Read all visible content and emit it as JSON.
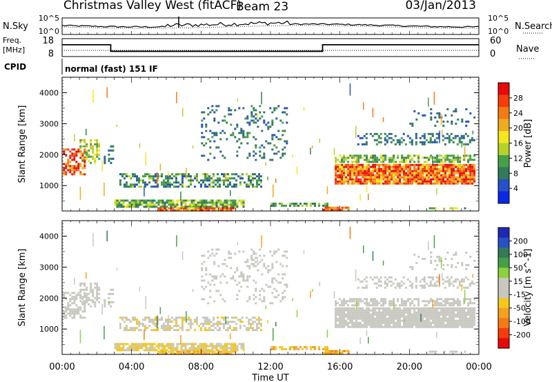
{
  "header": {
    "title": "Christmas Valley West (fitACF)",
    "beam": "Beam 23",
    "date": "03/Jan/2013",
    "nsky_label": "N.Sky",
    "nsearch_label": "N.Search",
    "freq_label_line1": "Freq.",
    "freq_label_line2": "[MHz]",
    "nave_label": "Nave",
    "cpid_label": "CPID",
    "cpid_value": "normal (fast) 151 IF"
  },
  "noise_panel": {
    "left_ticks": [
      "10^5",
      "10^0"
    ],
    "right_ticks": [
      "10^5",
      "10^0"
    ]
  },
  "freq_panel": {
    "left_ticks": [
      "18",
      "8"
    ],
    "right_ticks": [
      "60",
      "0"
    ],
    "freq_segments": [
      {
        "start": 0.0,
        "end": 2.8,
        "mhz": 14.6
      },
      {
        "start": 2.8,
        "end": 15.0,
        "mhz": 10.9
      },
      {
        "start": 15.0,
        "end": 24.0,
        "mhz": 14.6
      }
    ]
  },
  "chart_data": [
    {
      "type": "heatmap",
      "name": "power",
      "ylabel": "Slant Range [km]",
      "xlabel": "",
      "ylim": [
        180,
        4500
      ],
      "xlim": [
        0,
        24
      ],
      "y_ticks": [
        "1000",
        "2000",
        "3000",
        "4000"
      ],
      "x_ticks": [
        "00:00",
        "04:00",
        "08:00",
        "12:00",
        "16:00",
        "20:00",
        "00:00"
      ],
      "colorbar_label": "Power [dB]",
      "colorbar_ticks": [
        "4",
        "8",
        "12",
        "16",
        "20",
        "24",
        "28"
      ],
      "colorbar_range": [
        0,
        30
      ],
      "colors": [
        "#0a28e6",
        "#2850c8",
        "#327a5a",
        "#46a046",
        "#b4d22a",
        "#f5e61e",
        "#f0aa1e",
        "#f57a14",
        "#f53c0a",
        "#e60a0a"
      ]
    },
    {
      "type": "heatmap",
      "name": "velocity",
      "ylabel": "Slant Range [km]",
      "xlabel": "Time UT",
      "ylim": [
        180,
        4500
      ],
      "xlim": [
        0,
        24
      ],
      "y_ticks": [
        "1000",
        "2000",
        "3000",
        "4000"
      ],
      "x_ticks": [
        "00:00",
        "04:00",
        "08:00",
        "12:00",
        "16:00",
        "20:00",
        "00:00"
      ],
      "colorbar_label": "Velocity [m s^-1]",
      "colorbar_ticks": [
        "200",
        "100",
        "50",
        "15",
        "-15",
        "-50",
        "-100",
        "-200"
      ],
      "colorbar_range": [
        -250,
        250
      ],
      "colors": [
        "#1e28b4",
        "#2850c8",
        "#327a5a",
        "#46a046",
        "#8cd23c",
        "#c8c8c0",
        "#c8c8c0",
        "#f5c81e",
        "#f5a01e",
        "#f57a14",
        "#f53c0a",
        "#e60a0a"
      ]
    }
  ]
}
